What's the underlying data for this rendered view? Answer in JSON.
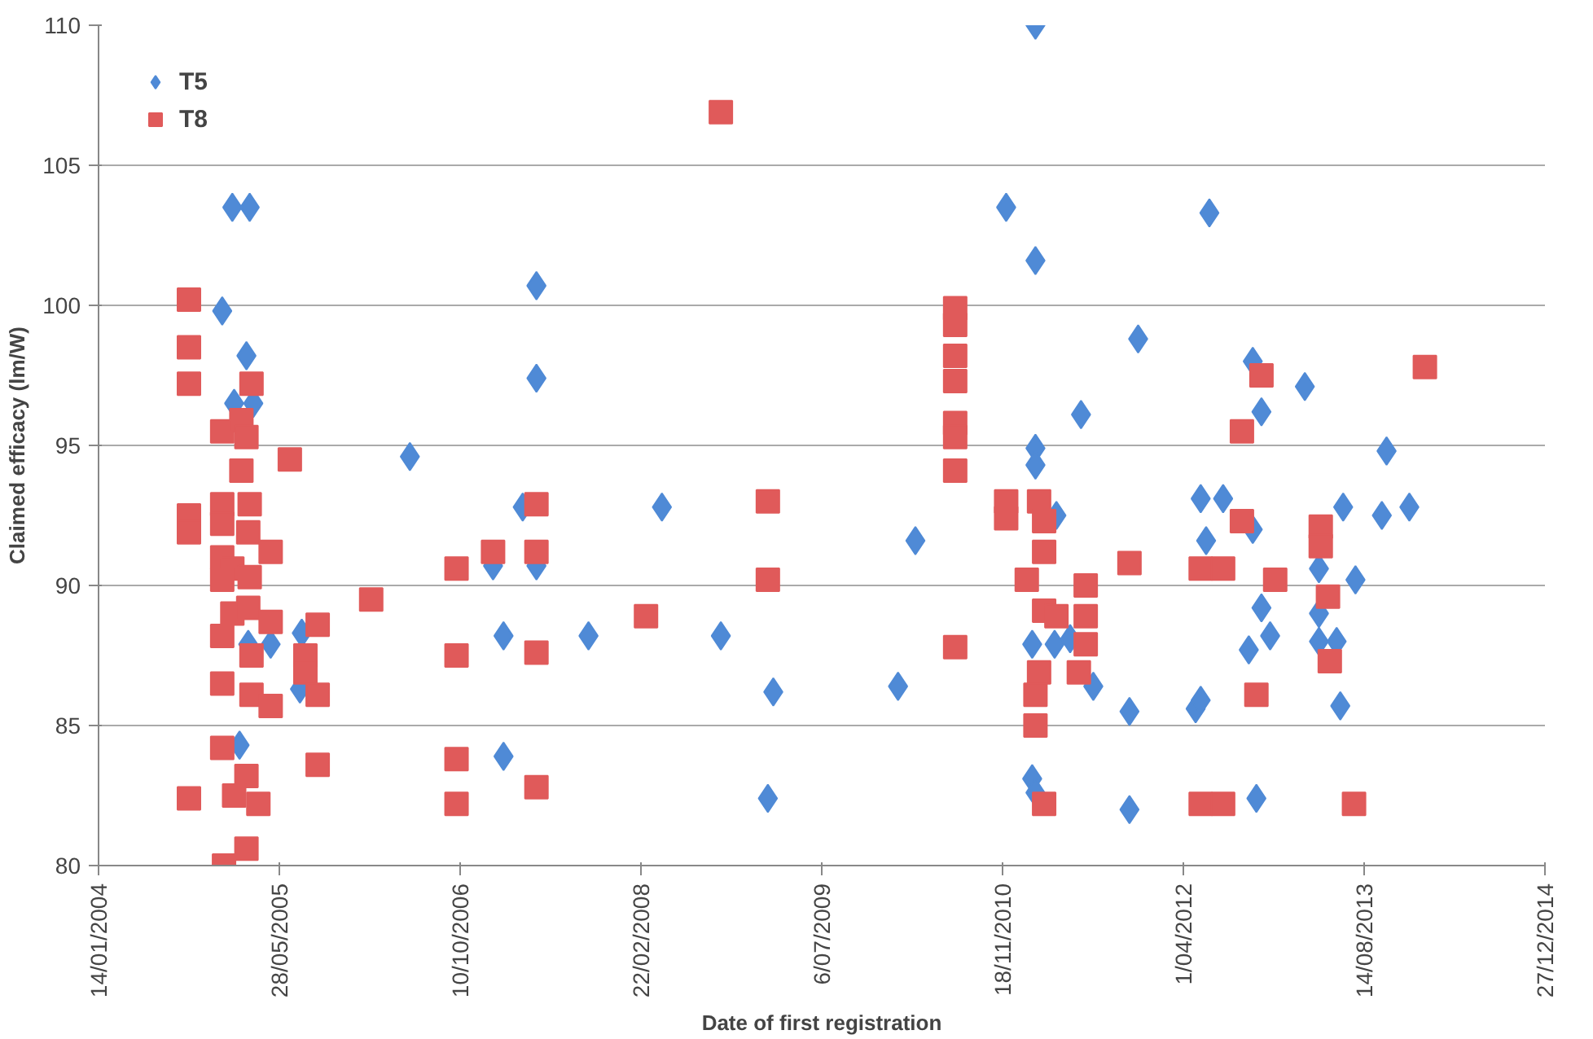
{
  "chart_data": {
    "type": "scatter",
    "xlabel": "Date of first registration",
    "ylabel": "Claimed efficacy (lm/W)",
    "xlim": [
      "2004-01-14",
      "2014-12-27"
    ],
    "xticks": [
      {
        "value": "2004-01-14",
        "label": "14/01/2004"
      },
      {
        "value": "2005-05-28",
        "label": "28/05/2005"
      },
      {
        "value": "2006-10-10",
        "label": "10/10/2006"
      },
      {
        "value": "2008-02-22",
        "label": "22/02/2008"
      },
      {
        "value": "2009-07-06",
        "label": "6/07/2009"
      },
      {
        "value": "2010-11-18",
        "label": "18/11/2010"
      },
      {
        "value": "2012-04-01",
        "label": "1/04/2012"
      },
      {
        "value": "2013-08-14",
        "label": "14/08/2013"
      },
      {
        "value": "2014-12-27",
        "label": "27/12/2014"
      }
    ],
    "ylim": [
      80,
      110
    ],
    "yticks": [
      80,
      85,
      90,
      95,
      100,
      105,
      110
    ],
    "grid": "y",
    "legend": "top left",
    "series": [
      {
        "name": "T5",
        "color": "#4f8ad6",
        "marker": "diamond",
        "x": [
          "2005-01-18",
          "2005-03-07",
          "2004-12-21",
          "2005-02-26",
          "2005-01-23",
          "2005-03-17",
          "2007-05-09",
          "2007-05-09",
          "2006-05-24",
          "2007-04-01",
          "2007-01-09",
          "2007-05-09",
          "2007-02-07",
          "2007-09-30",
          "2005-03-03",
          "2005-05-04",
          "2005-07-29",
          "2005-07-24",
          "2005-02-07",
          "2007-02-07",
          "2011-02-17",
          "2010-11-28",
          "2011-02-17",
          "2008-04-20",
          "2009-02-07",
          "2010-03-22",
          "2008-09-30",
          "2009-02-22",
          "2010-02-02",
          "2009-02-07",
          "2011-02-17",
          "2011-02-17",
          "2011-04-16",
          "2011-02-08",
          "2011-04-11",
          "2011-02-08",
          "2011-02-17",
          "2012-06-12",
          "2011-11-28",
          "2011-06-23",
          "2012-10-10",
          "2013-03-03",
          "2012-11-03",
          "2013-10-15",
          "2012-05-19",
          "2012-07-20",
          "2013-06-17",
          "2013-10-02",
          "2013-12-17",
          "2012-10-10",
          "2012-06-03",
          "2013-04-11",
          "2013-07-21",
          "2012-11-03",
          "2013-04-11",
          "2012-11-27",
          "2011-05-24",
          "2013-04-11",
          "2013-05-30",
          "2012-09-29",
          "2011-07-27",
          "2012-05-05",
          "2012-05-19",
          "2011-11-04",
          "2013-06-09",
          "2011-11-04",
          "2012-10-20"
        ],
        "values": [
          103.5,
          103.5,
          99.8,
          98.2,
          96.5,
          96.5,
          100.7,
          97.4,
          94.6,
          92.8,
          90.7,
          90.7,
          88.2,
          88.2,
          87.9,
          87.9,
          88.3,
          86.3,
          84.3,
          83.9,
          110.0,
          103.5,
          101.6,
          92.8,
          null,
          91.6,
          88.2,
          86.2,
          86.4,
          82.4,
          94.9,
          94.3,
          92.5,
          87.9,
          87.9,
          83.1,
          82.6,
          103.3,
          98.8,
          96.1,
          98.0,
          97.1,
          96.2,
          94.8,
          93.1,
          93.1,
          92.8,
          92.5,
          92.8,
          92.0,
          91.6,
          90.6,
          90.2,
          89.2,
          89.0,
          88.2,
          88.1,
          88.0,
          88.0,
          87.7,
          86.4,
          85.6,
          85.9,
          85.5,
          85.7,
          82.0,
          82.4
        ]
      },
      {
        "name": "T8",
        "color": "#e05a5a",
        "marker": "square",
        "x": [
          "2004-09-20",
          "2004-09-20",
          "2004-09-20",
          "2005-03-12",
          "2004-12-21",
          "2005-02-12",
          "2005-02-26",
          "2005-02-12",
          "2005-06-26",
          "2004-09-20",
          "2004-09-20",
          "2004-12-21",
          "2005-03-07",
          "2004-12-21",
          "2005-03-03",
          "2005-05-04",
          "2004-12-21",
          "2005-01-18",
          "2005-03-07",
          "2004-12-21",
          "2006-02-06",
          "2005-01-18",
          "2005-03-03",
          "2005-05-04",
          "2004-12-21",
          "2005-03-12",
          "2005-09-11",
          "2005-08-08",
          "2005-08-08",
          "2005-09-11",
          "2004-12-21",
          "2005-03-12",
          "2005-05-04",
          "2004-12-21",
          "2005-02-26",
          "2005-09-11",
          "2004-09-20",
          "2005-01-23",
          "2005-03-31",
          "2005-02-26",
          "2004-12-26",
          "2006-09-30",
          "2007-01-09",
          "2007-05-09",
          "2007-05-09",
          "2006-09-30",
          "2007-05-09",
          "2006-09-30",
          "2006-09-30",
          "2007-05-09",
          "2008-09-30",
          "2009-02-07",
          "2009-02-07",
          "2008-03-07",
          "2010-07-10",
          "2010-07-10",
          "2010-07-10",
          "2010-07-10",
          "2010-07-10",
          "2010-07-10",
          "2010-07-10",
          "2010-07-10",
          "2010-11-28",
          "2010-11-28",
          "2011-02-27",
          "2011-03-13",
          "2011-03-13",
          "2011-01-24",
          "2011-03-13",
          "2011-04-16",
          "2011-02-27",
          "2011-02-17",
          "2011-02-17",
          "2011-03-13",
          "2014-01-29",
          "2012-11-03",
          "2012-09-10",
          "2012-09-10",
          "2013-04-16",
          "2013-04-16",
          "2011-11-04",
          "2012-05-19",
          "2012-07-20",
          "2012-12-11",
          "2011-07-06",
          "2013-05-06",
          "2011-07-06",
          "2011-07-06",
          "2011-06-17",
          "2013-05-11",
          "2012-10-20",
          "2012-05-19",
          "2012-07-20",
          "2013-07-17"
        ],
        "values": [
          100.2,
          98.5,
          97.2,
          97.2,
          95.5,
          95.9,
          95.3,
          94.1,
          94.5,
          92.5,
          91.9,
          92.9,
          92.9,
          92.2,
          91.9,
          91.2,
          91.0,
          90.6,
          90.3,
          90.2,
          89.5,
          89.0,
          89.2,
          88.7,
          88.2,
          87.5,
          88.6,
          87.5,
          86.9,
          86.1,
          86.5,
          86.1,
          85.7,
          84.2,
          83.2,
          83.6,
          82.4,
          82.5,
          82.2,
          80.6,
          80.0,
          90.6,
          91.2,
          91.2,
          92.9,
          87.5,
          87.6,
          83.8,
          82.2,
          82.8,
          106.9,
          93.0,
          90.2,
          88.9,
          99.9,
          99.3,
          98.2,
          97.3,
          95.8,
          95.3,
          94.1,
          87.8,
          93.0,
          92.4,
          93.0,
          92.3,
          91.2,
          90.2,
          89.1,
          88.9,
          86.9,
          86.1,
          85.0,
          82.2,
          97.8,
          97.5,
          95.5,
          92.3,
          92.1,
          91.4,
          90.8,
          90.6,
          90.6,
          90.2,
          90.0,
          89.6,
          88.9,
          87.9,
          86.9,
          87.3,
          86.1,
          82.2,
          82.2,
          82.2
        ]
      }
    ]
  }
}
